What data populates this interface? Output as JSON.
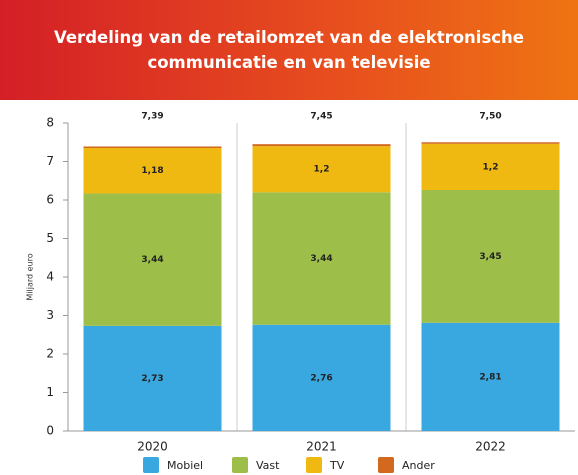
{
  "chart_data": {
    "type": "stacked-bar",
    "title": "Verdeling van de retailomzet van de elektronische communicatie en van televisie",
    "ylabel": "Miljard euro",
    "categories": [
      "2020",
      "2021",
      "2022"
    ],
    "series": [
      {
        "name": "Mobiel",
        "color": "#3aa8e0",
        "values": [
          2.73,
          2.76,
          2.81
        ],
        "value_labels": [
          "2,73",
          "2,76",
          "2,81"
        ]
      },
      {
        "name": "Vast",
        "color": "#9dbf4a",
        "values": [
          3.44,
          3.44,
          3.45
        ],
        "value_labels": [
          "3,44",
          "3,44",
          "3,45"
        ]
      },
      {
        "name": "TV",
        "color": "#f0b912",
        "values": [
          1.18,
          1.2,
          1.2
        ],
        "value_labels": [
          "1,18",
          "1,2",
          "1,2"
        ]
      },
      {
        "name": "Ander",
        "color": "#d2691e",
        "values": [
          0.04,
          0.05,
          0.04
        ]
      }
    ],
    "totals": [
      7.39,
      7.45,
      7.5
    ],
    "total_labels": [
      "7,39",
      "7,45",
      "7,50"
    ],
    "ylim": [
      0,
      8
    ],
    "yticks": [
      0,
      1,
      2,
      3,
      4,
      5,
      6,
      7,
      8
    ]
  }
}
